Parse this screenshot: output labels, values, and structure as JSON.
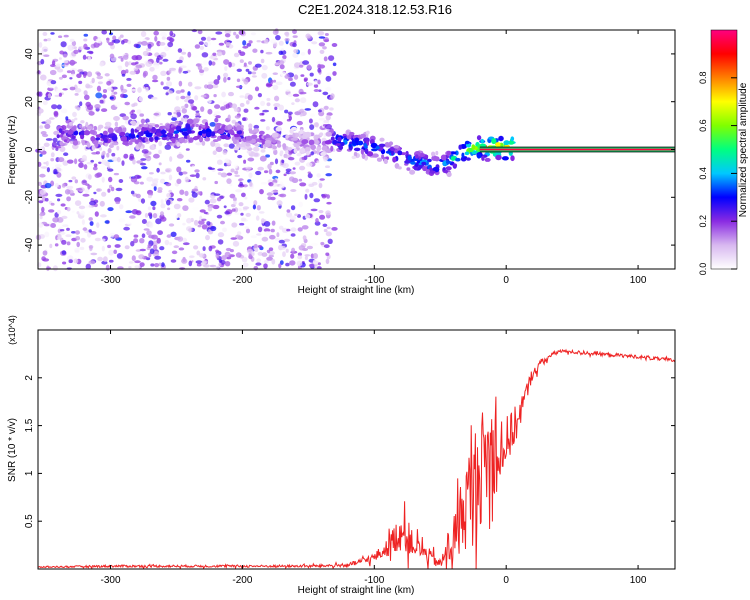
{
  "figure_title": "C2E1.2024.318.12.53.R16",
  "chart_data": [
    {
      "type": "heatmap",
      "title": "C2E1.2024.318.12.53.R16",
      "xlabel": "Height of straight line (km)",
      "ylabel": "Frequency (Hz)",
      "xlim": [
        -355,
        128
      ],
      "ylim": [
        -50,
        50
      ],
      "xticks": [
        -300,
        -200,
        -100,
        0,
        100
      ],
      "yticks": [
        -40,
        -20,
        0,
        20,
        40
      ],
      "xtick_labels": [
        "-300",
        "-200",
        "-100",
        "0",
        "100"
      ],
      "ytick_labels": [
        "-40",
        "-20",
        "0",
        "20",
        "40"
      ],
      "colorbar": {
        "label": "Normalized spectral amplitude",
        "range": [
          0,
          1
        ],
        "ticks": [
          0.0,
          0.2,
          0.4,
          0.6,
          0.8
        ],
        "tick_labels": [
          "0.0",
          "0.2",
          "0.4",
          "0.6",
          "0.8"
        ],
        "colors": [
          "#ffffff",
          "#d8b8f0",
          "#8a2be2",
          "#0000ff",
          "#00c8ff",
          "#00ff80",
          "#80ff00",
          "#ffff00",
          "#ff8000",
          "#ff0000",
          "#ff0080"
        ]
      },
      "noise_region_x": [
        -355,
        -130
      ],
      "signal_trace": {
        "x": [
          -340,
          -320,
          -300,
          -280,
          -260,
          -240,
          -220,
          -200,
          -180,
          -160,
          -140,
          -130,
          -120,
          -110,
          -100,
          -90,
          -80,
          -70,
          -60,
          -50,
          -40,
          -30,
          -20,
          -10,
          0,
          20,
          60,
          100,
          128
        ],
        "y": [
          7,
          6,
          5,
          6,
          6,
          8,
          7,
          6,
          4,
          3,
          3,
          4,
          3,
          2,
          1,
          -1,
          -3,
          -5,
          -6,
          -7,
          -4,
          0,
          1,
          1,
          1,
          0,
          0,
          0,
          0
        ],
        "max_amplitude": [
          0.35,
          0.3,
          0.3,
          0.35,
          0.35,
          0.38,
          0.33,
          0.3,
          0.2,
          0.18,
          0.18,
          0.4,
          0.4,
          0.38,
          0.38,
          0.35,
          0.4,
          0.45,
          0.42,
          0.4,
          0.55,
          0.65,
          0.8,
          0.85,
          0.9,
          0.92,
          0.95,
          0.95,
          0.95
        ]
      }
    },
    {
      "type": "line",
      "xlabel": "Height of straight line (km)",
      "ylabel": "SNR (10 * v/v)",
      "y_multiplier": "(x10^4)",
      "xlim": [
        -355,
        128
      ],
      "ylim": [
        0,
        2.5
      ],
      "xticks": [
        -300,
        -200,
        -100,
        0,
        100
      ],
      "yticks": [
        0.5,
        1.0,
        1.5,
        2.0
      ],
      "xtick_labels": [
        "-300",
        "-200",
        "-100",
        "0",
        "100"
      ],
      "ytick_labels": [
        "0.5",
        "1",
        "1.5",
        "2"
      ],
      "series": [
        {
          "color": "#ee2222",
          "x": [
            -355,
            -300,
            -250,
            -200,
            -150,
            -120,
            -100,
            -90,
            -80,
            -70,
            -60,
            -50,
            -40,
            -30,
            -20,
            -10,
            0,
            10,
            20,
            30,
            40,
            50,
            60,
            80,
            100,
            128
          ],
          "y": [
            0.02,
            0.03,
            0.03,
            0.03,
            0.03,
            0.04,
            0.12,
            0.22,
            0.4,
            0.25,
            0.15,
            0.05,
            0.3,
            0.7,
            1.05,
            1.25,
            1.3,
            1.6,
            2.05,
            2.2,
            2.28,
            2.27,
            2.26,
            2.24,
            2.22,
            2.18
          ],
          "spread": [
            0.01,
            0.02,
            0.02,
            0.02,
            0.02,
            0.03,
            0.08,
            0.15,
            0.35,
            0.2,
            0.15,
            0.08,
            0.45,
            0.8,
            1.0,
            0.9,
            0.5,
            0.25,
            0.1,
            0.05,
            0.03,
            0.03,
            0.03,
            0.03,
            0.03,
            0.03
          ]
        }
      ]
    }
  ]
}
